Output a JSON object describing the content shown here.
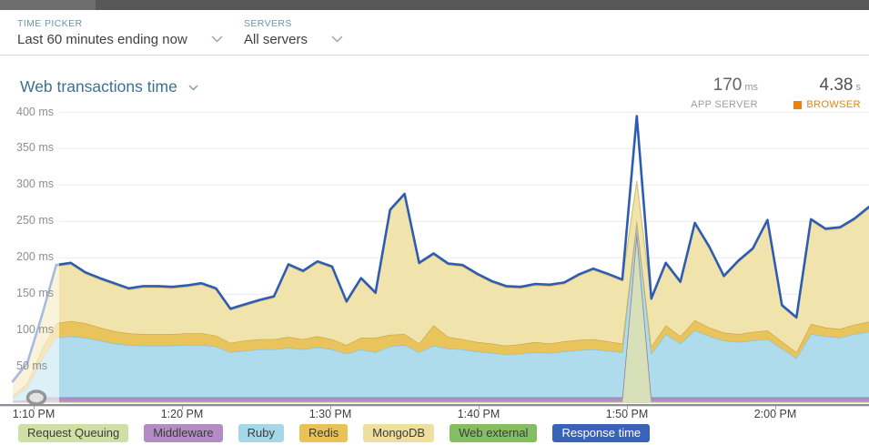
{
  "toolbar": {
    "time_picker": {
      "label": "TIME PICKER",
      "value": "Last 60 minutes ending now"
    },
    "servers": {
      "label": "SERVERS",
      "value": "All servers"
    }
  },
  "panel": {
    "title": "Web transactions time",
    "metrics": [
      {
        "value": "170",
        "unit": "ms",
        "label": "APP SERVER"
      },
      {
        "value": "4.38",
        "unit": "s",
        "label": "BROWSER"
      }
    ]
  },
  "chart_data": {
    "type": "area",
    "stacked": true,
    "unit": "ms",
    "title": "Web transactions time",
    "ylim": [
      0,
      400
    ],
    "grid": true,
    "legend_position": "bottom",
    "yticklabels": [
      "400 ms",
      "350 ms",
      "300 ms",
      "250 ms",
      "200 ms",
      "150 ms",
      "100 ms",
      "50 ms"
    ],
    "xticklabels": [
      "1:10 PM",
      "1:20 PM",
      "1:30 PM",
      "1:40 PM",
      "1:50 PM",
      "2:00 PM"
    ],
    "series": [
      {
        "name": "Request Queuing",
        "fill": "#d8e0ba",
        "stroke": "#adbf88",
        "values": [
          1,
          1,
          2,
          2,
          2,
          2,
          2,
          2,
          2,
          2,
          2,
          2,
          2,
          2,
          2,
          2,
          2,
          2,
          2,
          2,
          2,
          2,
          2,
          2,
          2,
          2,
          2,
          2,
          2,
          2,
          2,
          2,
          2,
          2,
          2,
          2,
          2,
          2,
          2,
          2,
          2,
          2,
          2,
          230,
          2,
          2,
          2,
          2,
          2,
          2,
          2,
          2,
          2,
          2,
          2,
          2,
          2,
          2,
          2,
          2
        ]
      },
      {
        "name": "Middleware",
        "fill": "#b190c1",
        "stroke": "#9574a6",
        "values": [
          2,
          3,
          6,
          6,
          6,
          6,
          6,
          6,
          6,
          6,
          6,
          6,
          6,
          6,
          6,
          6,
          6,
          6,
          6,
          6,
          6,
          6,
          6,
          6,
          6,
          6,
          6,
          6,
          6,
          6,
          6,
          6,
          6,
          6,
          6,
          6,
          6,
          6,
          6,
          6,
          6,
          6,
          6,
          6,
          6,
          6,
          6,
          6,
          6,
          6,
          6,
          6,
          6,
          6,
          6,
          6,
          6,
          6,
          6,
          6
        ]
      },
      {
        "name": "Ruby",
        "fill": "#aedced",
        "stroke": "#88bdd6",
        "values": [
          4,
          17,
          52,
          82,
          84,
          82,
          78,
          74,
          72,
          71,
          71,
          71,
          72,
          72,
          70,
          62,
          64,
          66,
          66,
          68,
          66,
          69,
          66,
          60,
          66,
          62,
          70,
          72,
          62,
          71,
          67,
          66,
          63,
          61,
          59,
          60,
          62,
          61,
          63,
          65,
          66,
          64,
          62,
          10,
          60,
          87,
          74,
          92,
          84,
          78,
          76,
          78,
          80,
          67,
          54,
          87,
          84,
          82,
          87,
          90
        ]
      },
      {
        "name": "Redis",
        "fill": "#e9c45c",
        "stroke": "#c8a23d",
        "values": [
          3,
          6,
          14,
          20,
          21,
          20,
          18,
          17,
          16,
          16,
          16,
          16,
          16,
          16,
          15,
          13,
          14,
          14,
          14,
          15,
          14,
          15,
          14,
          12,
          16,
          20,
          16,
          15,
          12,
          28,
          16,
          14,
          13,
          13,
          12,
          13,
          14,
          13,
          14,
          14,
          14,
          13,
          12,
          6,
          10,
          12,
          10,
          14,
          12,
          11,
          11,
          12,
          12,
          10,
          8,
          14,
          12,
          12,
          13,
          14
        ]
      },
      {
        "name": "MongoDB",
        "fill": "#f0e3ac",
        "stroke": "#d8c178",
        "values": [
          18,
          26,
          44,
          78,
          78,
          68,
          66,
          64,
          60,
          64,
          64,
          63,
          64,
          67,
          63,
          45,
          48,
          52,
          57,
          98,
          92,
          101,
          98,
          58,
          80,
          60,
          170,
          191,
          109,
          97,
          99,
          100,
          92,
          84,
          80,
          77,
          78,
          79,
          79,
          88,
          95,
          91,
          86,
          53,
          64,
          84,
          73,
          132,
          109,
          76,
          99,
          113,
          150,
          48,
          46,
          142,
          134,
          138,
          144,
          156
        ]
      },
      {
        "name": "Web external",
        "fill": "#8fc468",
        "stroke": "#6ea64a",
        "values": [
          0,
          0,
          0,
          0,
          0,
          0,
          0,
          0,
          0,
          0,
          0,
          0,
          0,
          0,
          0,
          0,
          0,
          0,
          0,
          0,
          0,
          0,
          0,
          0,
          0,
          0,
          0,
          0,
          0,
          0,
          0,
          0,
          0,
          0,
          0,
          0,
          0,
          0,
          0,
          0,
          0,
          0,
          0,
          0,
          0,
          0,
          0,
          0,
          0,
          0,
          0,
          0,
          0,
          0,
          0,
          0,
          0,
          0,
          0,
          0
        ]
      }
    ],
    "response_line": {
      "name": "Response time",
      "color": "#2f5cb3",
      "values": [
        30,
        55,
        120,
        190,
        193,
        180,
        172,
        165,
        158,
        161,
        161,
        160,
        162,
        165,
        158,
        130,
        136,
        142,
        147,
        191,
        182,
        195,
        188,
        140,
        172,
        152,
        266,
        288,
        193,
        206,
        192,
        190,
        178,
        168,
        161,
        160,
        164,
        163,
        166,
        177,
        185,
        178,
        170,
        395,
        144,
        193,
        167,
        248,
        215,
        175,
        196,
        213,
        252,
        135,
        118,
        253,
        240,
        242,
        254,
        270
      ]
    }
  },
  "legend": [
    {
      "label": "Request Queuing",
      "bg": "#cfdfa5",
      "text": "#3c3c3c"
    },
    {
      "label": "Middleware",
      "bg": "#b28cc2",
      "text": "#3c3c3c"
    },
    {
      "label": "Ruby",
      "bg": "#a6d7e9",
      "text": "#3c3c3c"
    },
    {
      "label": "Redis",
      "bg": "#e9c257",
      "text": "#3c3c3c"
    },
    {
      "label": "MongoDB",
      "bg": "#efdf9f",
      "text": "#3c3c3c"
    },
    {
      "label": "Web external",
      "bg": "#85be62",
      "text": "#3c3c3c"
    },
    {
      "label": "Response time",
      "bg": "#3a63b8",
      "text": "#ffffff"
    }
  ]
}
